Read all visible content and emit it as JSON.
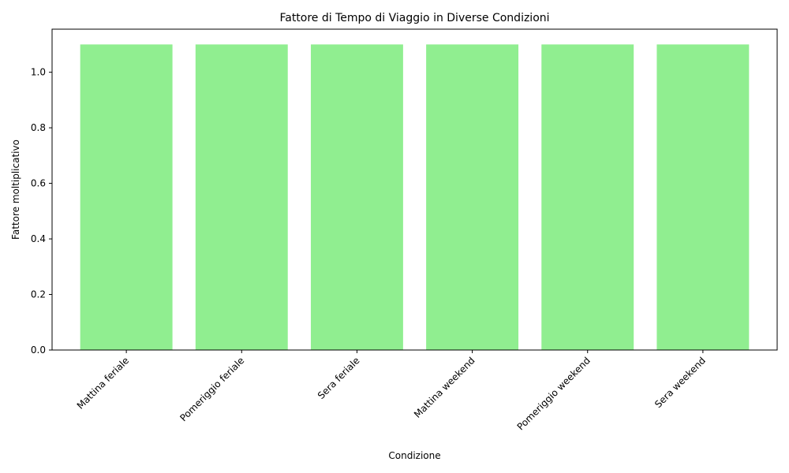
{
  "chart_data": {
    "type": "bar",
    "title": "Fattore di Tempo di Viaggio in Diverse Condizioni",
    "xlabel": "Condizione",
    "ylabel": "Fattore moltiplicativo",
    "categories": [
      "Mattina feriale",
      "Pomeriggio feriale",
      "Sera feriale",
      "Mattina weekend",
      "Pomeriggio weekend",
      "Sera weekend"
    ],
    "values": [
      1.1,
      1.1,
      1.1,
      1.1,
      1.1,
      1.1
    ],
    "ylim": [
      0,
      1.155
    ],
    "yticks": [
      "0.0",
      "0.2",
      "0.4",
      "0.6",
      "0.8",
      "1.0"
    ],
    "grid": false,
    "bar_color": "#90ee90",
    "xtick_rotation_deg": 45
  }
}
